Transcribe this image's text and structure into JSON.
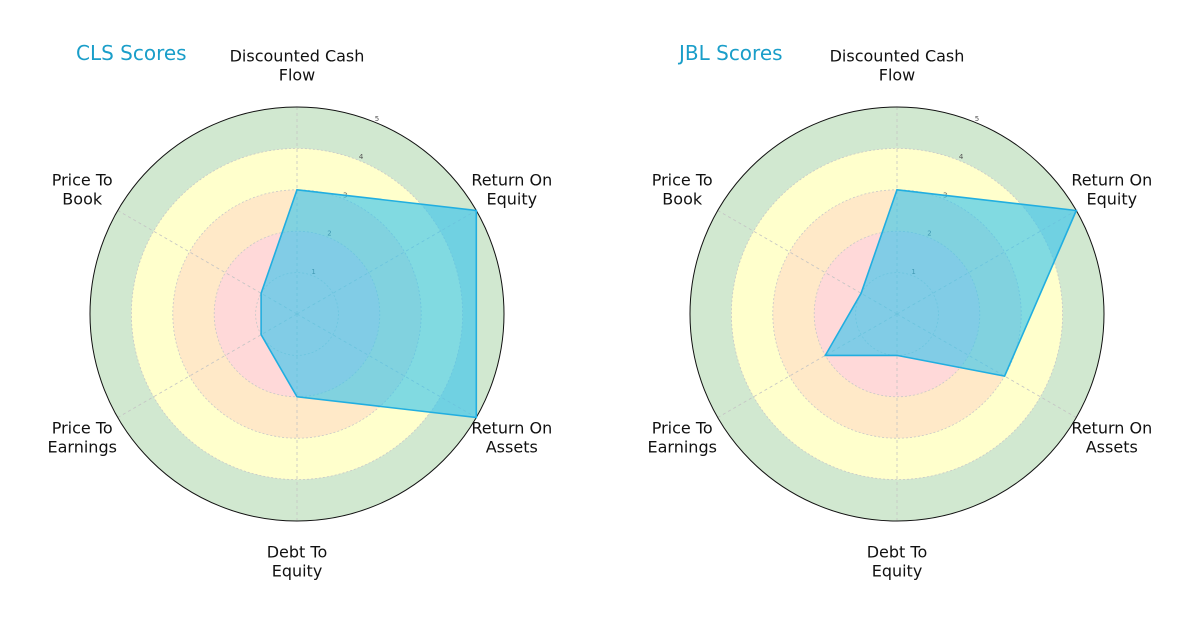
{
  "colors": {
    "band_red": "#ffd9d9",
    "band_orange": "#ffe9c8",
    "band_yellow": "#ffffcc",
    "band_green": "#d1e8d0",
    "series_fill": "#33c3ee",
    "series_stroke": "#21aee0",
    "title": "#1a9ec9",
    "outline": "#111111"
  },
  "chart_data": [
    {
      "type": "radar",
      "title": "CLS Scores",
      "categories": [
        "Discounted Cash Flow",
        "Return On Equity",
        "Return On Assets",
        "Debt To Equity",
        "Price To Earnings",
        "Price To Book"
      ],
      "category_label_lines": [
        [
          "Discounted Cash",
          "Flow"
        ],
        [
          "Return On",
          "Equity"
        ],
        [
          "Return On",
          "Assets"
        ],
        [
          "Debt To",
          "Equity"
        ],
        [
          "Price To",
          "Earnings"
        ],
        [
          "Price To",
          "Book"
        ]
      ],
      "rticks": [
        "1",
        "2",
        "3",
        "4",
        "5"
      ],
      "rlim": [
        0,
        5
      ],
      "bands": [
        {
          "from": 0,
          "to": 2,
          "color": "band_red"
        },
        {
          "from": 2,
          "to": 3,
          "color": "band_orange"
        },
        {
          "from": 3,
          "to": 4,
          "color": "band_yellow"
        },
        {
          "from": 4,
          "to": 5,
          "color": "band_green"
        }
      ],
      "series": [
        {
          "values": [
            3,
            5,
            5,
            2,
            1,
            1
          ]
        }
      ],
      "grid": true
    },
    {
      "type": "radar",
      "title": "JBL Scores",
      "categories": [
        "Discounted Cash Flow",
        "Return On Equity",
        "Return On Assets",
        "Debt To Equity",
        "Price To Earnings",
        "Price To Book"
      ],
      "category_label_lines": [
        [
          "Discounted Cash",
          "Flow"
        ],
        [
          "Return On",
          "Equity"
        ],
        [
          "Return On",
          "Assets"
        ],
        [
          "Debt To",
          "Equity"
        ],
        [
          "Price To",
          "Earnings"
        ],
        [
          "Price To",
          "Book"
        ]
      ],
      "rticks": [
        "1",
        "2",
        "3",
        "4",
        "5"
      ],
      "rlim": [
        0,
        5
      ],
      "bands": [
        {
          "from": 0,
          "to": 2,
          "color": "band_red"
        },
        {
          "from": 2,
          "to": 3,
          "color": "band_orange"
        },
        {
          "from": 3,
          "to": 4,
          "color": "band_yellow"
        },
        {
          "from": 4,
          "to": 5,
          "color": "band_green"
        }
      ],
      "series": [
        {
          "values": [
            3,
            5,
            3,
            1,
            2,
            1
          ]
        }
      ],
      "grid": true
    }
  ]
}
